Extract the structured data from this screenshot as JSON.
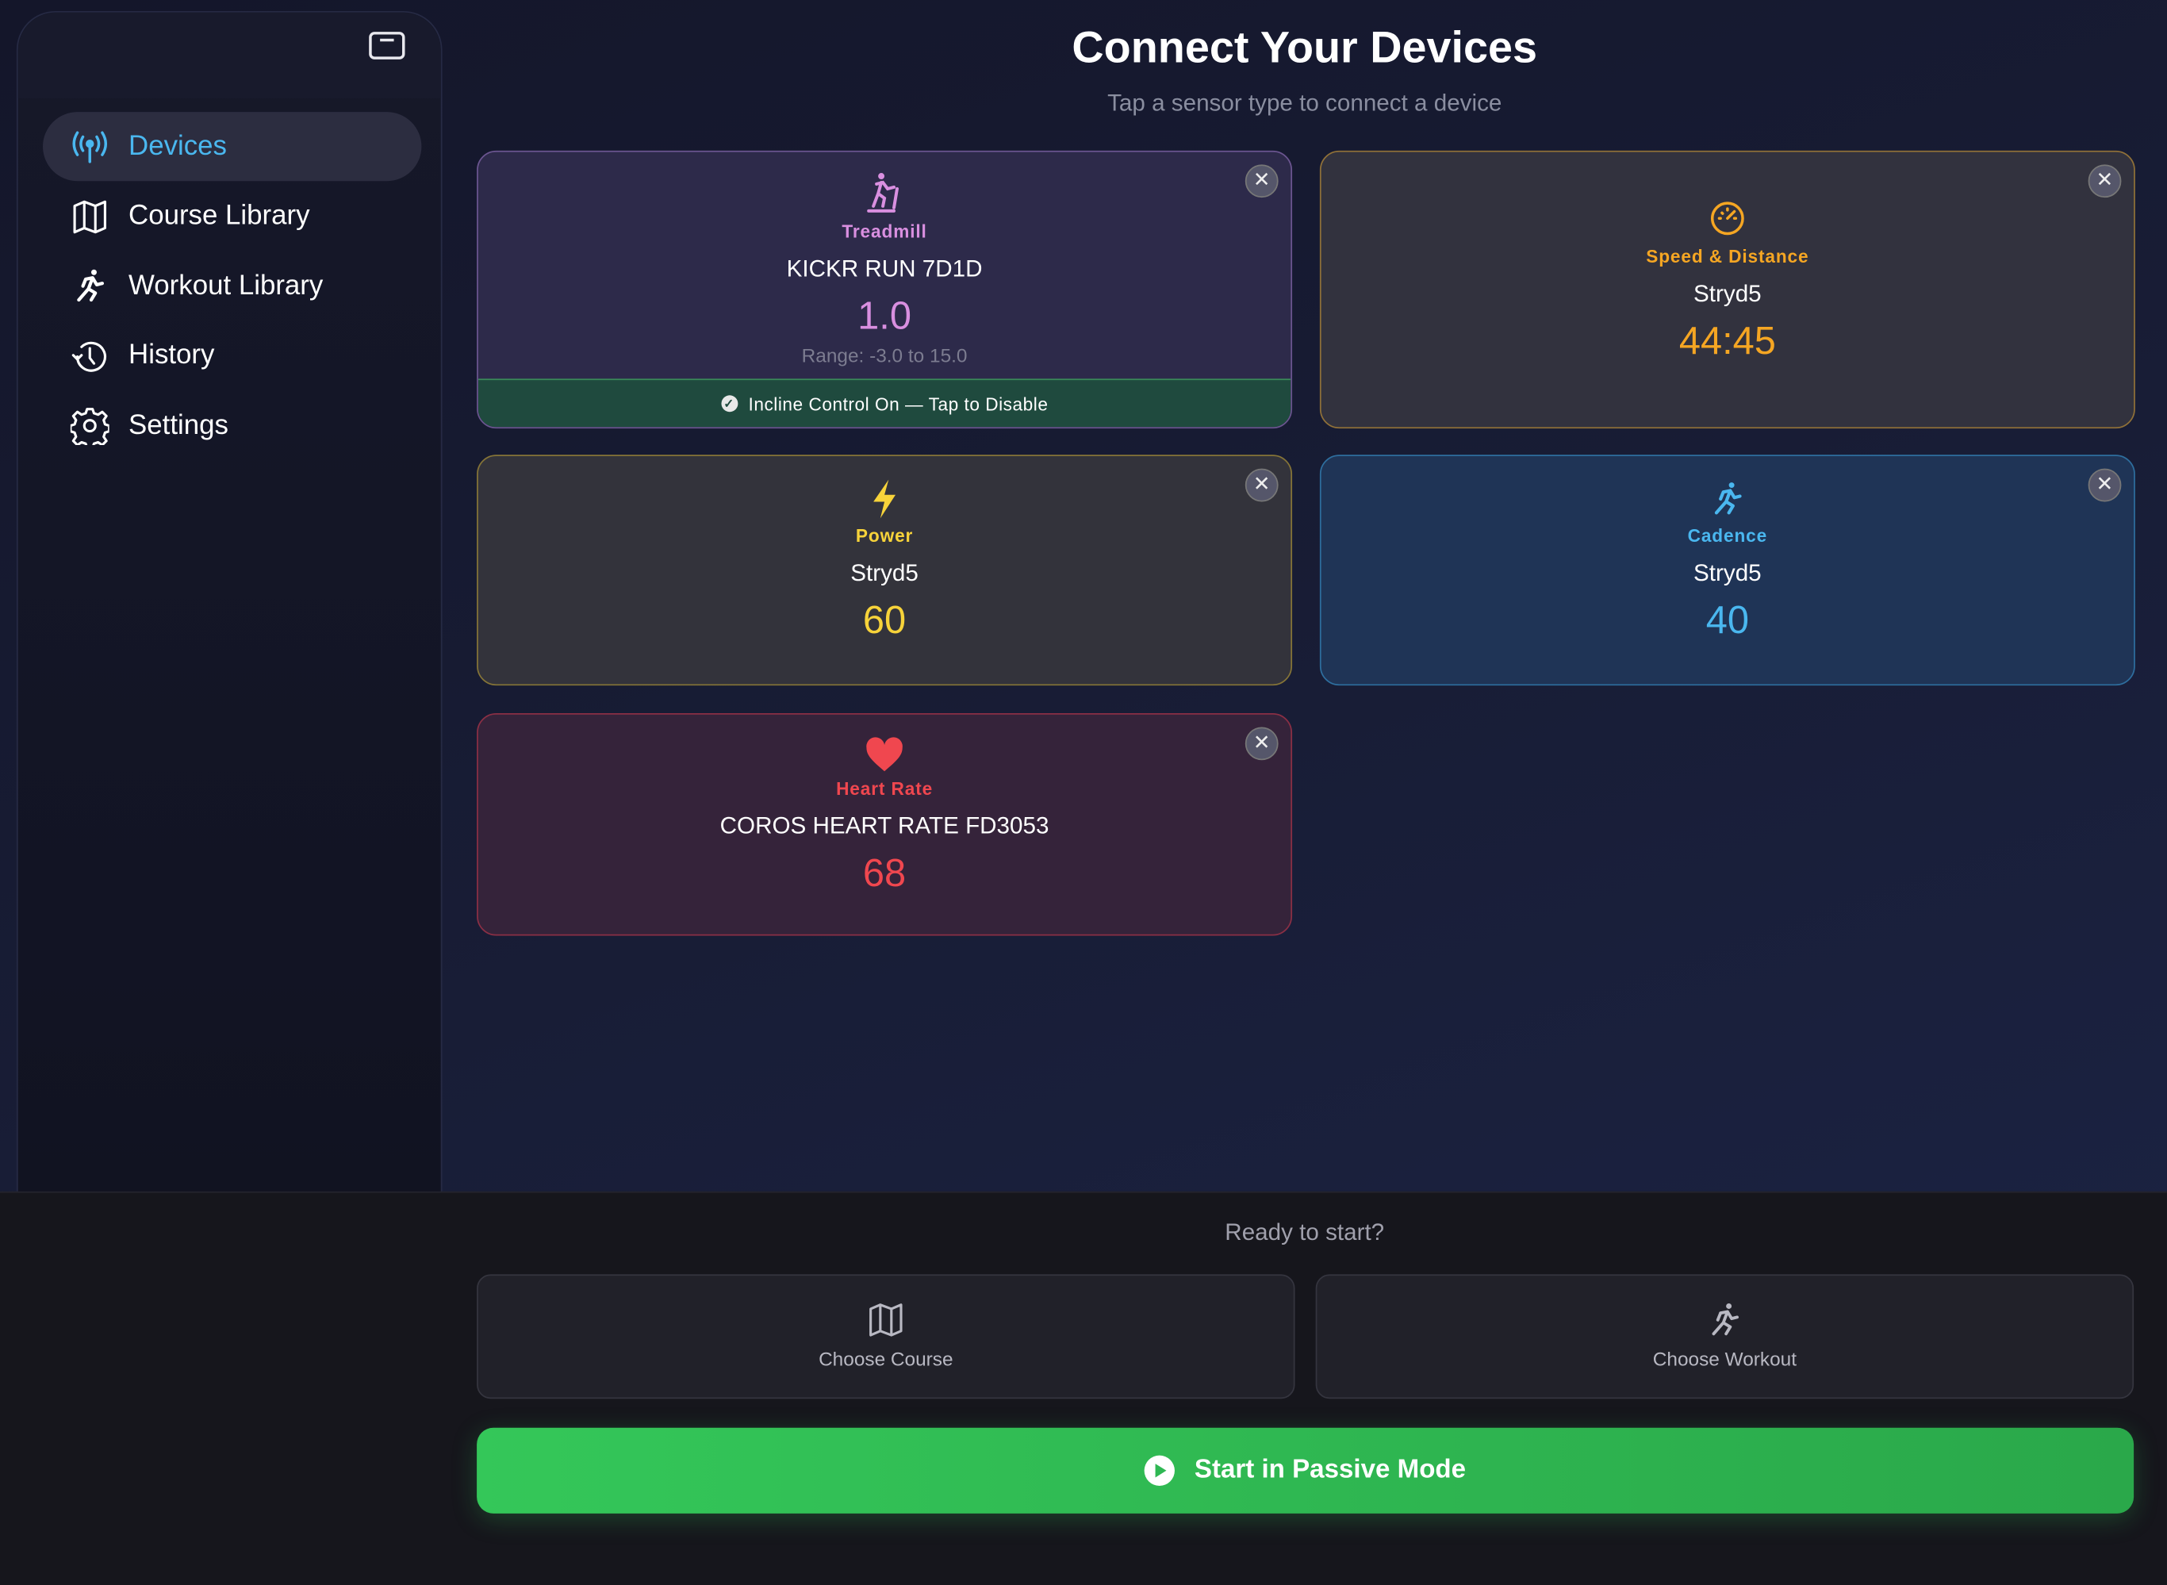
{
  "sidebar": {
    "items": [
      {
        "label": "Devices",
        "icon": "antenna-icon",
        "active": true
      },
      {
        "label": "Course Library",
        "icon": "map-icon"
      },
      {
        "label": "Workout Library",
        "icon": "running-figure-icon"
      },
      {
        "label": "History",
        "icon": "history-clock-icon"
      },
      {
        "label": "Settings",
        "icon": "gear-icon"
      }
    ]
  },
  "header": {
    "title": "Connect Your Devices",
    "subtitle": "Tap a sensor type to connect a device"
  },
  "cards": {
    "treadmill": {
      "type": "Treadmill",
      "device": "KICKR RUN 7D1D",
      "value": "1.0",
      "range": "Range: -3.0 to 15.0",
      "incline": "Incline Control On — Tap to Disable",
      "color": "#d98fe0"
    },
    "speed": {
      "type": "Speed & Distance",
      "device": "Stryd5",
      "value": "44:45",
      "color": "#f5a623"
    },
    "power": {
      "type": "Power",
      "device": "Stryd5",
      "value": "60",
      "color": "#f7d33a"
    },
    "cadence": {
      "type": "Cadence",
      "device": "Stryd5",
      "value": "40",
      "color": "#4ab7ef"
    },
    "heart": {
      "type": "Heart Rate",
      "device": "COROS HEART RATE FD3053",
      "value": "68",
      "color": "#f0474f"
    }
  },
  "close_glyph": "✕",
  "footer": {
    "ready": "Ready to start?",
    "choose_course": "Choose Course",
    "choose_workout": "Choose Workout",
    "start": "Start in Passive Mode"
  }
}
